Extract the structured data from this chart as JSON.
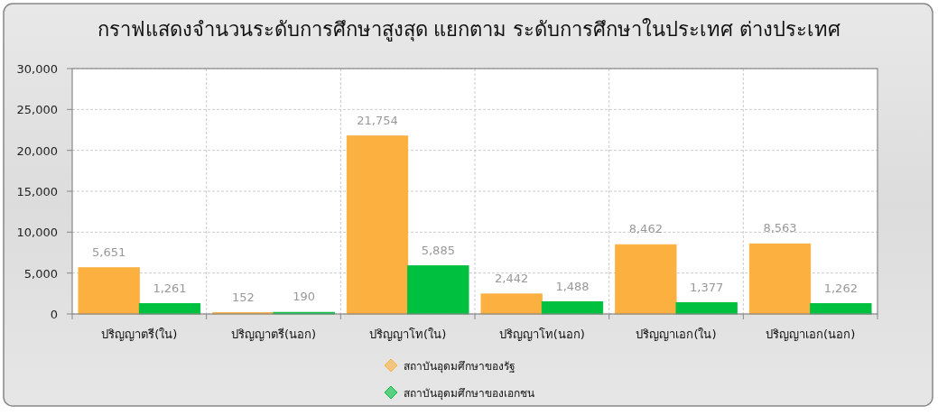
{
  "chart_data": {
    "type": "bar",
    "title": "กราฟแสดงจำนวนระดับการศึกษาสูงสุด แยกตาม ระดับการศึกษาในประเทศ ต่างประเทศ",
    "categories": [
      "ปริญญาตรี(ใน)",
      "ปริญญาตรี(นอก)",
      "ปริญญาโท(ใน)",
      "ปริญญาโท(นอก)",
      "ปริญญาเอก(ใน)",
      "ปริญญาเอก(นอก)"
    ],
    "series": [
      {
        "name": "สถาบันอุดมศึกษาของรัฐ",
        "color": "#fbb040",
        "values": [
          5651,
          152,
          21754,
          2442,
          8462,
          8563
        ],
        "value_labels": [
          "5,651",
          "152",
          "21,754",
          "2,442",
          "8,462",
          "8,563"
        ]
      },
      {
        "name": "สถาบันอุดมศึกษาของเอกชน",
        "color": "#00c040",
        "values": [
          1261,
          190,
          5885,
          1488,
          1377,
          1262
        ],
        "value_labels": [
          "1,261",
          "190",
          "5,885",
          "1,488",
          "1,377",
          "1,262"
        ]
      }
    ],
    "ylim": [
      0,
      30000
    ],
    "yticks": [
      0,
      {
        "value": 5000,
        "label": "5,000"
      },
      {
        "value": 10000,
        "label": "10,000"
      },
      {
        "value": 15000,
        "label": "15,000"
      },
      {
        "value": 20000,
        "label": "20,000"
      },
      {
        "value": 25000,
        "label": "25,000"
      },
      {
        "value": 30000,
        "label": "30,000"
      }
    ],
    "grid": true,
    "legend": "bottom"
  }
}
